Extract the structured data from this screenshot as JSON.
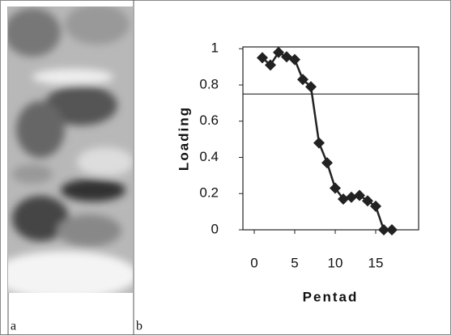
{
  "chart_data": {
    "type": "line",
    "panel_labels": [
      "a",
      "b"
    ],
    "xlabel": "Pentad",
    "ylabel": "Loading",
    "x": [
      1,
      2,
      3,
      4,
      5,
      6,
      7,
      8,
      9,
      10,
      11,
      12,
      13,
      14,
      15,
      16,
      17
    ],
    "values": [
      0.95,
      0.91,
      0.98,
      0.955,
      0.94,
      0.83,
      0.79,
      0.48,
      0.37,
      0.23,
      0.17,
      0.18,
      0.19,
      0.16,
      0.13,
      0,
      0
    ],
    "color": "#222222",
    "reference_line": 0.75,
    "xlim": [
      -1.4,
      20.3
    ],
    "ylim": [
      0,
      1.01
    ],
    "xticks": [
      0,
      5,
      10,
      15
    ],
    "yticks": [
      0,
      0.2,
      0.4,
      0.6,
      0.8,
      1
    ],
    "grid": false
  }
}
